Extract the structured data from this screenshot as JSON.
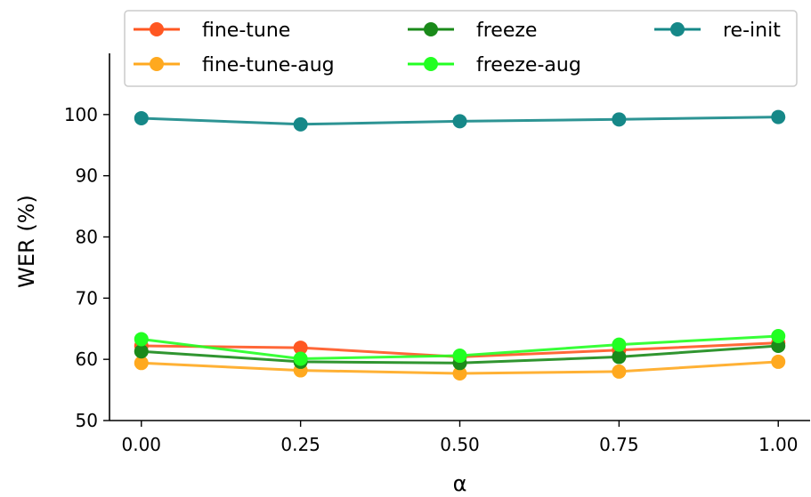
{
  "chart_data": {
    "type": "line",
    "xlabel": "α",
    "ylabel": "WER (%)",
    "x": [
      0.0,
      0.25,
      0.5,
      0.75,
      1.0
    ],
    "x_tick_labels": [
      "0.00",
      "0.25",
      "0.50",
      "0.75",
      "1.00"
    ],
    "y_ticks": [
      50,
      60,
      70,
      80,
      90,
      100
    ],
    "y_tick_labels": [
      "50",
      "60",
      "70",
      "80",
      "90",
      "100"
    ],
    "xlim": [
      -0.05,
      1.05
    ],
    "ylim": [
      50,
      110
    ],
    "grid": false,
    "legend_position": "top",
    "series": [
      {
        "name": "fine-tune",
        "color": "#ff5722",
        "values": [
          62.2,
          61.9,
          60.4,
          61.5,
          62.7
        ]
      },
      {
        "name": "fine-tune-aug",
        "color": "#ffa91f",
        "values": [
          59.4,
          58.2,
          57.7,
          58.0,
          59.6
        ]
      },
      {
        "name": "freeze",
        "color": "#1a8a1a",
        "values": [
          61.3,
          59.6,
          59.4,
          60.4,
          62.2
        ]
      },
      {
        "name": "freeze-aug",
        "color": "#22ff22",
        "values": [
          63.3,
          60.1,
          60.6,
          62.4,
          63.8
        ]
      },
      {
        "name": "re-init",
        "color": "#168888",
        "values": [
          99.4,
          98.4,
          98.9,
          99.2,
          99.6
        ]
      }
    ]
  }
}
